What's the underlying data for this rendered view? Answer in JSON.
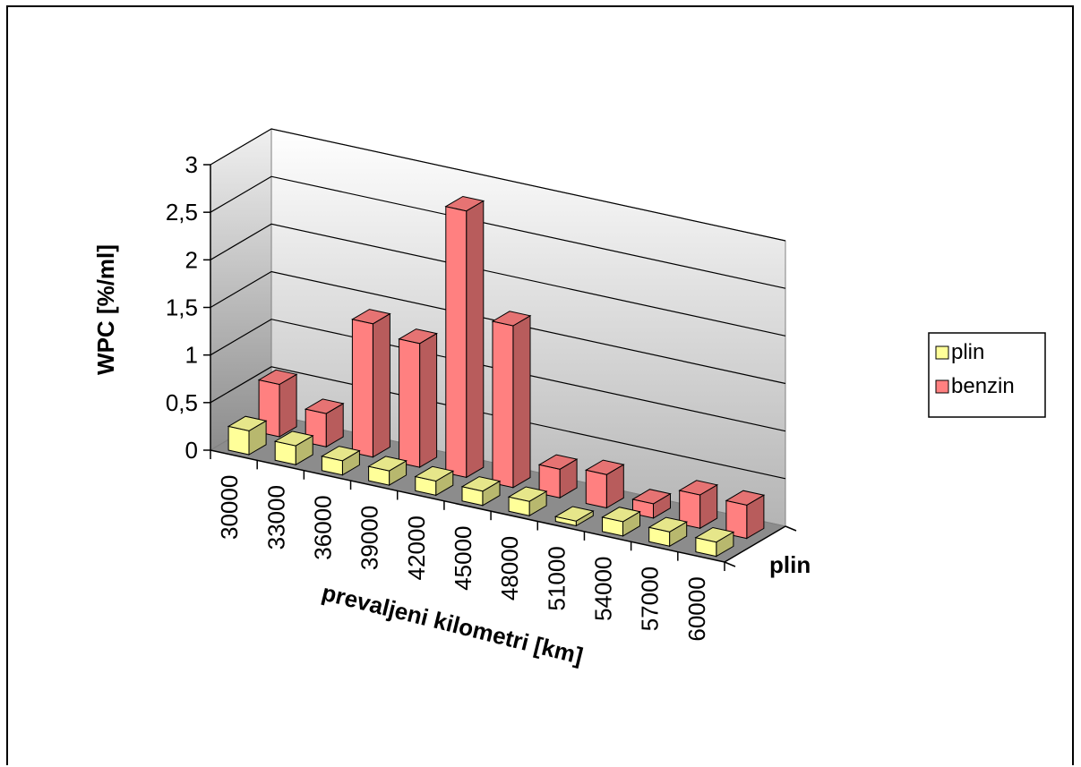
{
  "chart_data": {
    "type": "bar",
    "three_d": true,
    "categories": [
      "30000",
      "33000",
      "36000",
      "39000",
      "42000",
      "45000",
      "48000",
      "51000",
      "54000",
      "57000",
      "60000"
    ],
    "series": [
      {
        "name": "plin",
        "values": [
          0.25,
          0.2,
          0.15,
          0.15,
          0.15,
          0.15,
          0.15,
          0.05,
          0.15,
          0.15,
          0.15
        ],
        "color": "#ffff99"
      },
      {
        "name": "benzin",
        "values": [
          0.55,
          0.35,
          1.4,
          1.3,
          2.8,
          1.7,
          0.3,
          0.35,
          0.15,
          0.35,
          0.35
        ],
        "color": "#ff8080"
      }
    ],
    "ylabel": "WPC [%/ml]",
    "xlabel": "prevaljeni kilometri [km]",
    "depth_axis_label": "plin",
    "ylim": [
      0,
      3
    ],
    "yticks": [
      "0",
      "0,5",
      "1",
      "1,5",
      "2",
      "2,5",
      "3"
    ],
    "grid": true,
    "legend": {
      "position": "right",
      "entries": [
        "plin",
        "benzin"
      ]
    }
  }
}
